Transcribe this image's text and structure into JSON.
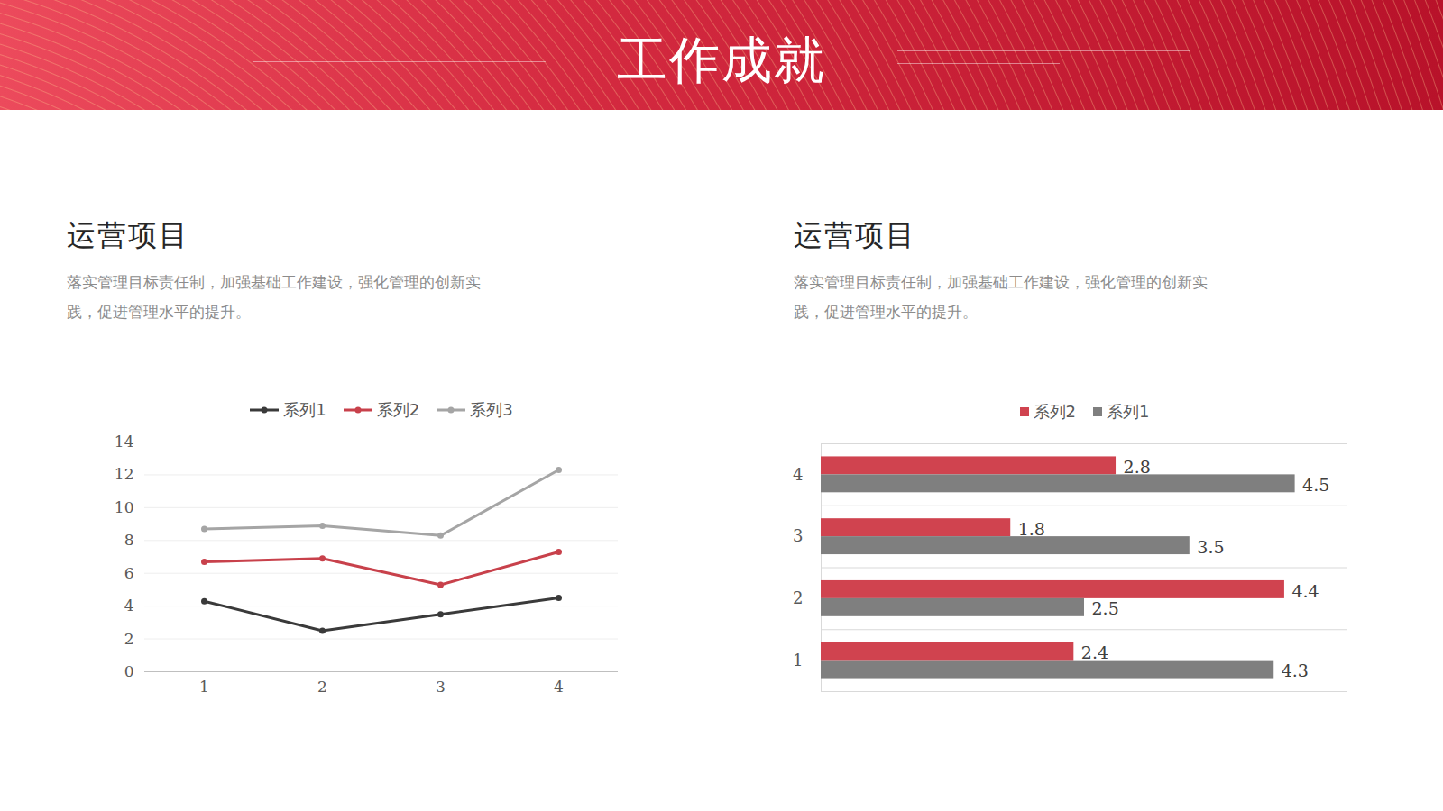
{
  "header": {
    "title": "工作成就"
  },
  "chart_data": [
    {
      "type": "line",
      "title": "运营项目",
      "subtitle": "落实管理目标责任制，加强基础工作建设，强化管理的创新实践，促进管理水平的提升。",
      "categories": [
        "1",
        "2",
        "3",
        "4"
      ],
      "stacked": true,
      "marker": "circle",
      "series": [
        {
          "name": "系列1",
          "color": "#3a3a3a",
          "values": [
            4.3,
            2.5,
            3.5,
            4.5
          ]
        },
        {
          "name": "系列2",
          "color": "#c8414b",
          "values": [
            2.4,
            4.4,
            1.8,
            2.8
          ]
        },
        {
          "name": "系列3",
          "color": "#a5a5a5",
          "values": [
            2,
            2,
            3,
            5
          ]
        }
      ],
      "ylim": [
        0,
        14
      ],
      "yticks": [
        0,
        2,
        4,
        6,
        8,
        10,
        12,
        14
      ],
      "grid": true,
      "legend": "top"
    },
    {
      "type": "bar",
      "title": "运营项目",
      "subtitle": "落实管理目标责任制，加强基础工作建设，强化管理的创新实践，促进管理水平的提升。",
      "orientation": "horizontal",
      "categories": [
        "1",
        "2",
        "3",
        "4"
      ],
      "series": [
        {
          "name": "系列2",
          "color": "#d0434f",
          "values": [
            2.4,
            4.4,
            1.8,
            2.8
          ]
        },
        {
          "name": "系列1",
          "color": "#7f7f7f",
          "values": [
            4.3,
            2.5,
            3.5,
            4.5
          ]
        }
      ],
      "xlim": [
        0,
        5
      ],
      "tick_labels": "y",
      "data_labels": true,
      "grid": true,
      "legend": "top"
    }
  ]
}
